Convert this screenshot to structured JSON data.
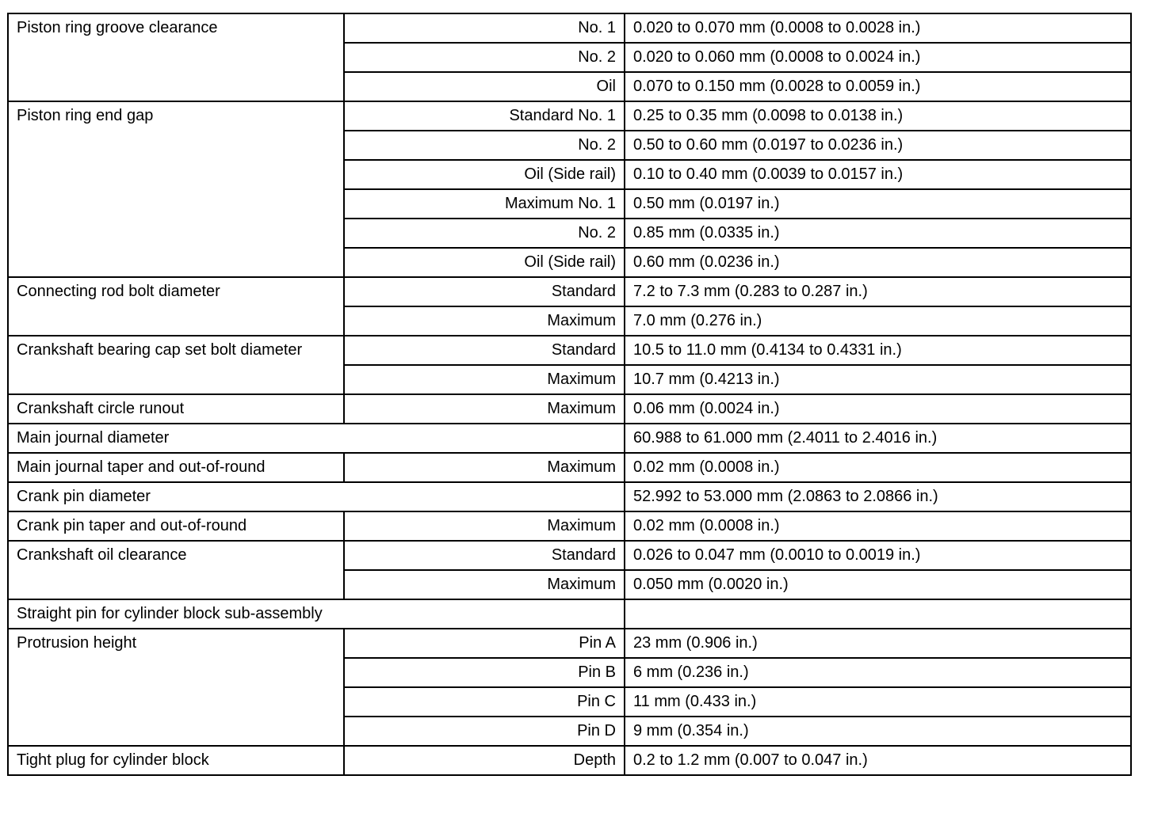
{
  "table": [
    {
      "label": "Piston ring groove clearance",
      "rows": [
        {
          "sub": "No. 1",
          "value": "0.020 to 0.070 mm (0.0008 to 0.0028 in.)"
        },
        {
          "sub": "No. 2",
          "value": "0.020 to 0.060 mm (0.0008 to 0.0024 in.)"
        },
        {
          "sub": "Oil",
          "value": "0.070 to 0.150 mm (0.0028 to 0.0059 in.)"
        }
      ]
    },
    {
      "label": "Piston ring end gap",
      "rows": [
        {
          "sub": "Standard No. 1",
          "value": "0.25 to 0.35 mm (0.0098 to 0.0138 in.)"
        },
        {
          "sub": "No. 2",
          "value": "0.50 to 0.60 mm (0.0197 to 0.0236 in.)"
        },
        {
          "sub": "Oil (Side rail)",
          "value": "0.10 to 0.40 mm (0.0039 to 0.0157 in.)"
        },
        {
          "sub": "Maximum No. 1",
          "value": "0.50 mm (0.0197 in.)"
        },
        {
          "sub": "No. 2",
          "value": "0.85 mm (0.0335 in.)"
        },
        {
          "sub": "Oil (Side rail)",
          "value": "0.60 mm (0.0236 in.)"
        }
      ]
    },
    {
      "label": "Connecting rod bolt diameter",
      "rows": [
        {
          "sub": "Standard",
          "value": "7.2 to 7.3 mm (0.283 to 0.287 in.)"
        },
        {
          "sub": "Maximum",
          "value": "7.0 mm (0.276 in.)"
        }
      ]
    },
    {
      "label": "Crankshaft bearing cap set bolt diameter",
      "rows": [
        {
          "sub": "Standard",
          "value": "10.5 to 11.0 mm (0.4134 to 0.4331 in.)"
        },
        {
          "sub": "Maximum",
          "value": "10.7 mm (0.4213 in.)"
        }
      ]
    },
    {
      "label": "Crankshaft circle runout",
      "rows": [
        {
          "sub": "Maximum",
          "value": "0.06 mm (0.0024 in.)"
        }
      ]
    },
    {
      "label": "Main journal diameter",
      "wide": true,
      "value": "60.988 to 61.000 mm (2.4011 to 2.4016 in.)"
    },
    {
      "label": "Main journal taper and out-of-round",
      "rows": [
        {
          "sub": "Maximum",
          "value": "0.02 mm (0.0008 in.)"
        }
      ]
    },
    {
      "label": "Crank pin diameter",
      "wide": true,
      "value": "52.992 to 53.000 mm (2.0863 to 2.0866 in.)"
    },
    {
      "label": "Crank pin taper and out-of-round",
      "rows": [
        {
          "sub": "Maximum",
          "value": "0.02 mm (0.0008 in.)"
        }
      ]
    },
    {
      "label": "Crankshaft oil clearance",
      "rows": [
        {
          "sub": "Standard",
          "value": "0.026 to 0.047 mm (0.0010 to 0.0019 in.)"
        },
        {
          "sub": "Maximum",
          "value": "0.050 mm (0.0020 in.)"
        }
      ]
    },
    {
      "label": "Straight pin for cylinder block sub-assembly",
      "wide": true,
      "value": ""
    },
    {
      "label": "Protrusion height",
      "rows": [
        {
          "sub": "Pin A",
          "value": "23 mm (0.906 in.)"
        },
        {
          "sub": "Pin B",
          "value": "6 mm (0.236 in.)"
        },
        {
          "sub": "Pin C",
          "value": "11 mm (0.433 in.)"
        },
        {
          "sub": "Pin D",
          "value": "9 mm (0.354 in.)"
        }
      ]
    },
    {
      "label": "Tight plug for cylinder block",
      "rows": [
        {
          "sub": "Depth",
          "value": "0.2 to 1.2 mm (0.007 to 0.047 in.)"
        }
      ]
    }
  ]
}
